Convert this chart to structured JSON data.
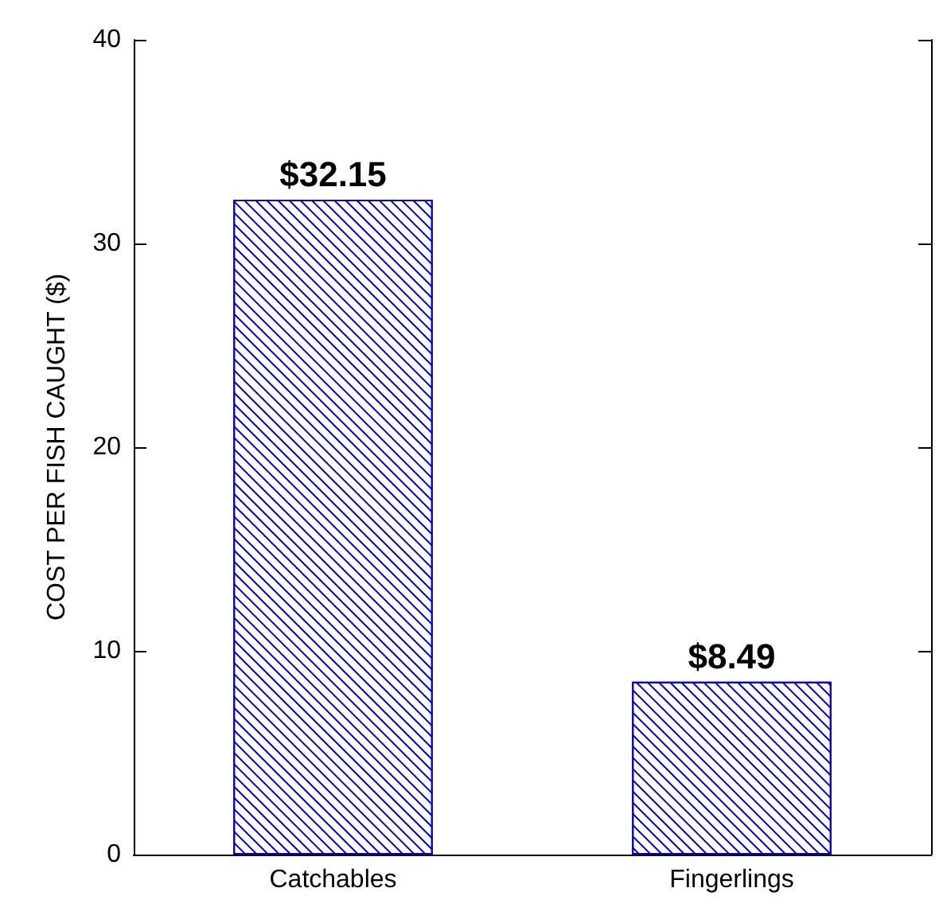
{
  "chart_data": {
    "type": "bar",
    "ylabel": "COST PER FISH CAUGHT ($)",
    "categories": [
      "Catchables",
      "Fingerlings"
    ],
    "values": [
      32.15,
      8.49
    ],
    "value_labels": [
      "$32.15",
      "$8.49"
    ],
    "color": "#0000cc",
    "ylim": [
      0,
      40
    ],
    "yticks": [
      0,
      10,
      20,
      30,
      40
    ],
    "grid": false
  }
}
